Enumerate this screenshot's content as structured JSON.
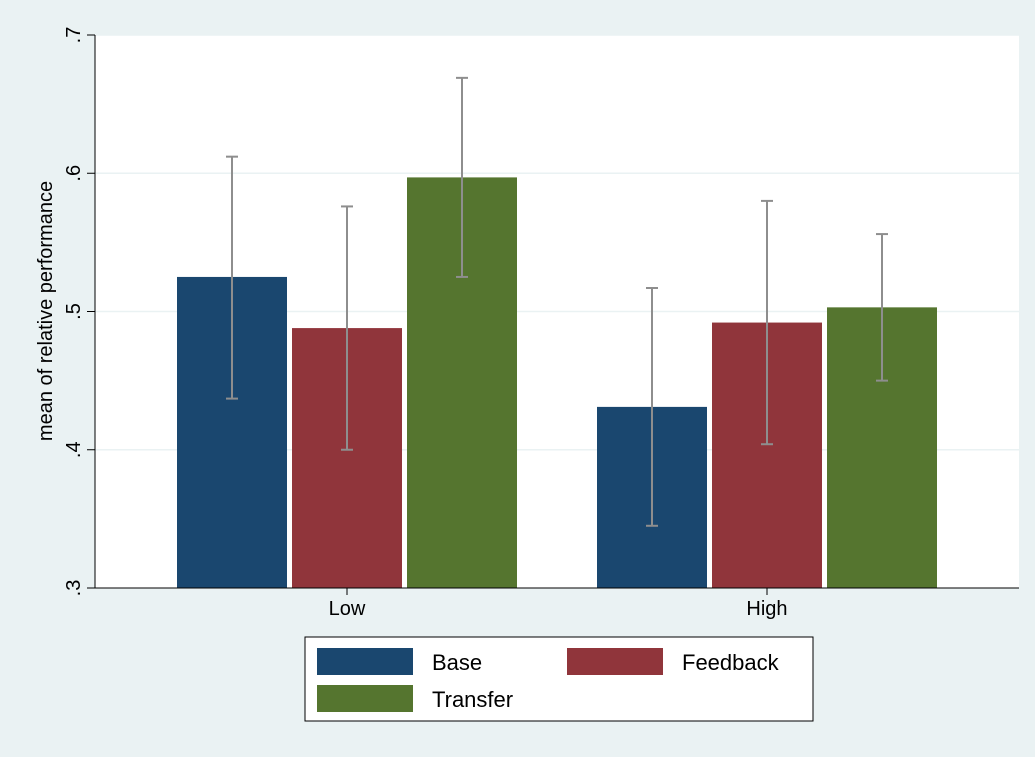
{
  "chart_data": {
    "type": "bar",
    "ylabel": "mean of relative performance",
    "ylim": [
      0.3,
      0.7
    ],
    "y_ticks": [
      {
        "value": 0.3,
        "label": ".3"
      },
      {
        "value": 0.4,
        "label": ".4"
      },
      {
        "value": 0.5,
        "label": ".5"
      },
      {
        "value": 0.6,
        "label": ".6"
      },
      {
        "value": 0.7,
        "label": ".7"
      }
    ],
    "grid": true,
    "error_bars": true,
    "categories": [
      "Low",
      "High"
    ],
    "series": [
      {
        "name": "Base",
        "color": "#1a476f",
        "values": [
          0.525,
          0.431
        ],
        "ci_low": [
          0.437,
          0.345
        ],
        "ci_high": [
          0.612,
          0.517
        ]
      },
      {
        "name": "Feedback",
        "color": "#90353b",
        "values": [
          0.488,
          0.492
        ],
        "ci_low": [
          0.4,
          0.404
        ],
        "ci_high": [
          0.576,
          0.58
        ]
      },
      {
        "name": "Transfer",
        "color": "#55752f",
        "values": [
          0.597,
          0.503
        ],
        "ci_low": [
          0.525,
          0.45
        ],
        "ci_high": [
          0.669,
          0.556
        ]
      }
    ],
    "legend": {
      "placement": "bottom-center",
      "columns": 2
    }
  },
  "colors": {
    "outer_background": "#eaf2f3",
    "plot_background": "#ffffff",
    "gridline": "#eaf2f3",
    "error_bar": "#8e8e8e"
  }
}
